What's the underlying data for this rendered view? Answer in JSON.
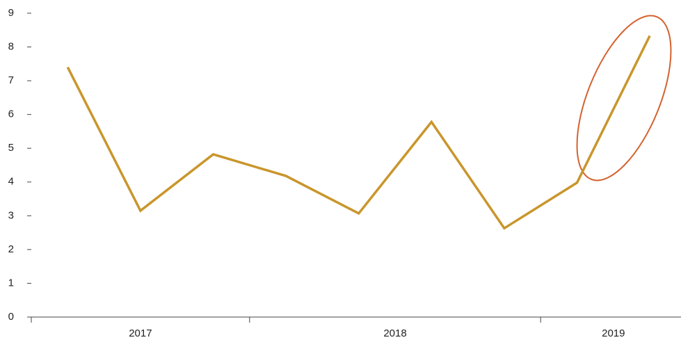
{
  "chart_data": {
    "type": "line",
    "categories": [
      null,
      null,
      null,
      null,
      null,
      null,
      null,
      null,
      null
    ],
    "x_groups": [
      {
        "label": "2017",
        "size": 3
      },
      {
        "label": "2018",
        "size": 4
      },
      {
        "label": "2019",
        "size": 2
      }
    ],
    "series": [
      {
        "color": "#c9962c",
        "values": [
          7.4,
          3.15,
          4.82,
          4.18,
          3.07,
          5.78,
          2.63,
          3.98,
          8.33
        ]
      }
    ],
    "ylim": [
      0,
      9
    ],
    "yticks": [
      0,
      1,
      2,
      3,
      4,
      5,
      6,
      7,
      8,
      9
    ],
    "grid": false
  }
}
